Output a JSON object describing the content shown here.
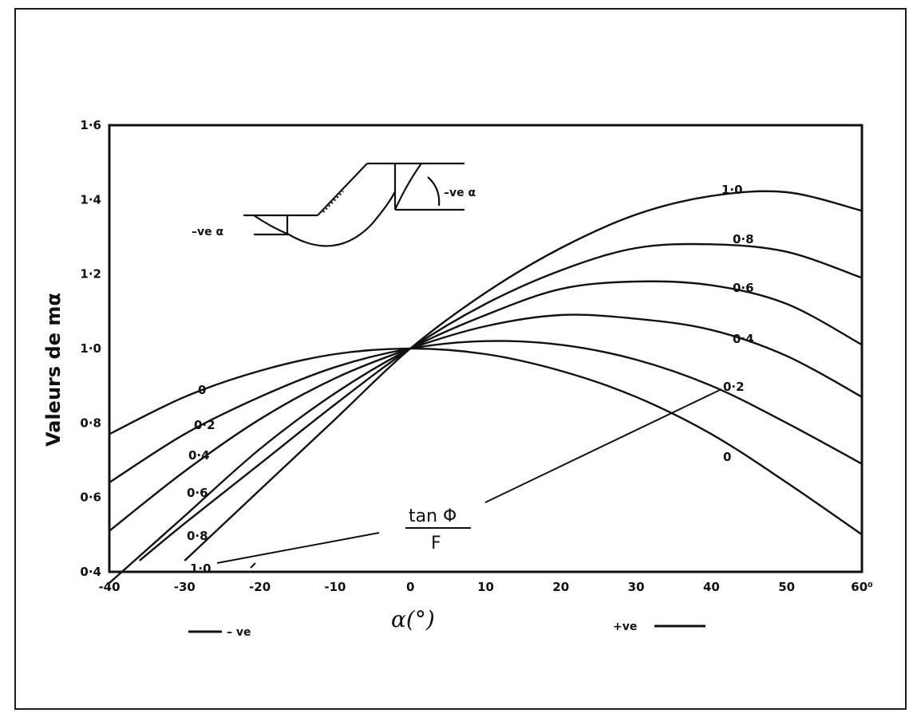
{
  "chart_data": {
    "type": "line",
    "xlabel": "α(°)",
    "ylabel": "Valeurs de mα",
    "xlim": [
      -40,
      60
    ],
    "ylim": [
      0.4,
      1.6
    ],
    "x_ticks": [
      "-40",
      "-30",
      "-20",
      "-10",
      "0",
      "10",
      "20",
      "30",
      "40",
      "50",
      "60⁰"
    ],
    "y_ticks": [
      "0.4",
      "0.6",
      "0.8",
      "1.0",
      "1.2",
      "1.4",
      "1.6"
    ],
    "parameter_label_top": "tan Φ",
    "parameter_label_bottom": "F",
    "x_neg_label": "– ve",
    "x_pos_label": "+ve",
    "inset_label_left": "–ve α",
    "inset_label_right": "–ve α",
    "series": [
      {
        "name": "0",
        "left_label": "0",
        "right_label": "0",
        "x": [
          -40,
          -30,
          -20,
          -10,
          0,
          10,
          20,
          30,
          40,
          50,
          60
        ],
        "y": [
          0.77,
          0.87,
          0.94,
          0.985,
          1.0,
          0.985,
          0.94,
          0.87,
          0.77,
          0.64,
          0.5
        ]
      },
      {
        "name": "0.2",
        "left_label": "0.2",
        "right_label": "0.2",
        "x": [
          -40,
          -30,
          -20,
          -10,
          0,
          10,
          20,
          30,
          40,
          50,
          60
        ],
        "y": [
          0.64,
          0.77,
          0.87,
          0.95,
          1.0,
          1.02,
          1.01,
          0.97,
          0.9,
          0.8,
          0.69
        ]
      },
      {
        "name": "0.4",
        "left_label": "0.4",
        "right_label": "0.4",
        "x": [
          -40,
          -30,
          -20,
          -10,
          0,
          10,
          20,
          30,
          40,
          50,
          60
        ],
        "y": [
          0.51,
          0.67,
          0.81,
          0.92,
          1.0,
          1.06,
          1.09,
          1.08,
          1.05,
          0.98,
          0.87
        ]
      },
      {
        "name": "0.6",
        "left_label": "0.6",
        "right_label": "0.6",
        "x": [
          -40,
          -35,
          -30,
          -20,
          -10,
          0,
          10,
          20,
          30,
          40,
          50,
          60
        ],
        "y": [
          0.37,
          0.46,
          0.55,
          0.73,
          0.88,
          1.0,
          1.09,
          1.16,
          1.18,
          1.17,
          1.12,
          1.01
        ]
      },
      {
        "name": "0.8",
        "left_label": "0.8",
        "right_label": "0.8",
        "x": [
          -36,
          -30,
          -20,
          -10,
          0,
          10,
          20,
          30,
          40,
          50,
          60
        ],
        "y": [
          0.43,
          0.53,
          0.69,
          0.85,
          1.0,
          1.12,
          1.21,
          1.27,
          1.28,
          1.26,
          1.19
        ]
      },
      {
        "name": "1.0",
        "left_label": "1.0",
        "right_label": "1.0",
        "x": [
          -30,
          -20,
          -10,
          0,
          10,
          20,
          30,
          40,
          50,
          60
        ],
        "y": [
          0.43,
          0.62,
          0.81,
          1.0,
          1.15,
          1.27,
          1.36,
          1.41,
          1.42,
          1.37
        ]
      }
    ]
  }
}
